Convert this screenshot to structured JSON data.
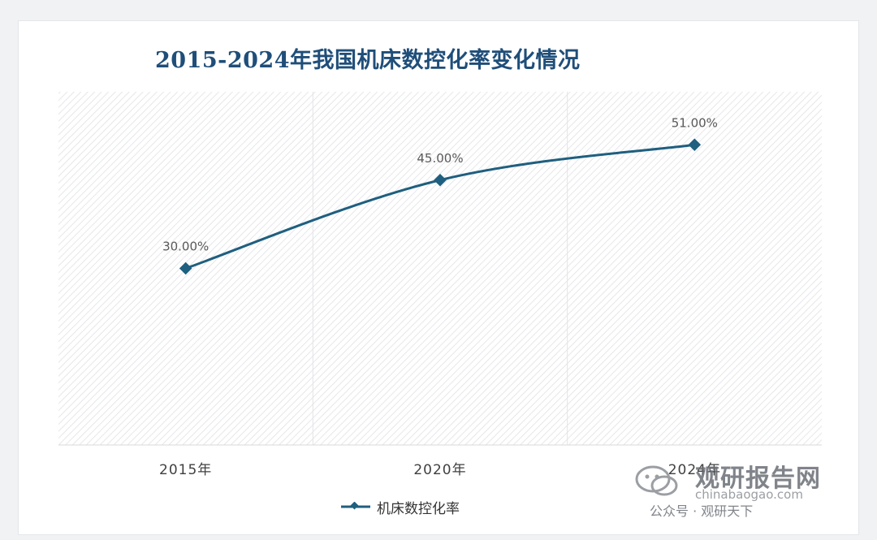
{
  "chart_data": {
    "type": "line",
    "title": "2015-2024年我国机床数控化率变化情况",
    "categories": [
      "2015年",
      "2020年",
      "2024年"
    ],
    "series": [
      {
        "name": "机床数控化率",
        "values": [
          30,
          45,
          51
        ],
        "labels": [
          "30.00%",
          "45.00%",
          "51.00%"
        ]
      }
    ],
    "ylim": [
      0,
      60
    ],
    "grid": false,
    "legend_position": "bottom",
    "colors": {
      "line": "#1f5f7f",
      "marker": "#1f5f7f",
      "label": "#595959",
      "title": "#1f4e79"
    }
  },
  "watermark": {
    "brand": "观研报告网",
    "url": "chinabaogao.com",
    "account": "公众号 · 观研天下",
    "logo_icon": "wechat-logo-icon"
  }
}
